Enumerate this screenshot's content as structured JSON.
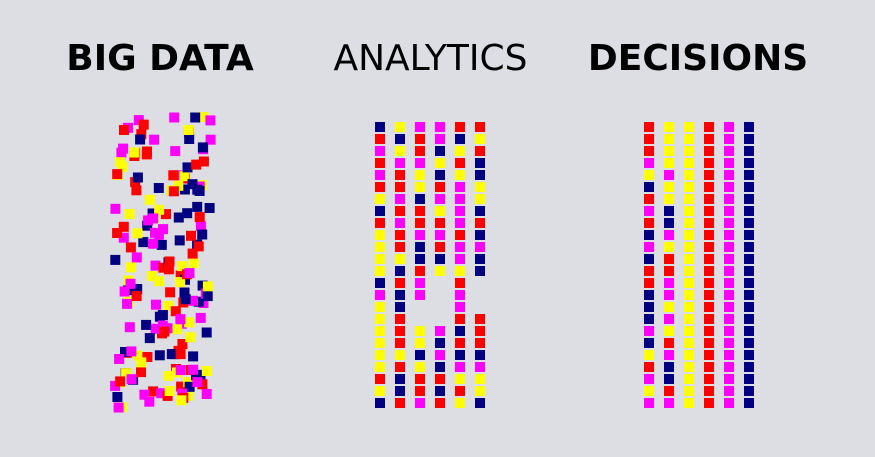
{
  "headings": {
    "big_data": "BIG DATA",
    "analytics": "ANALYTICS",
    "decisions": "DECISIONS"
  },
  "palette": {
    "magenta": "#ff00ff",
    "yellow": "#ffff00",
    "red": "#ff0000",
    "navy": "#000080"
  },
  "background": "#dcdee3"
}
